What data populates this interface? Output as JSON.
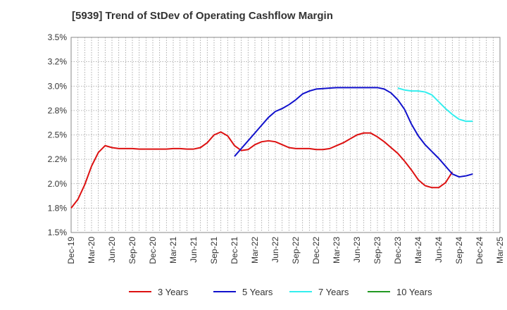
{
  "chart_data": {
    "type": "line",
    "title": "[5939]  Trend of StDev of Operating Cashflow Margin",
    "xlabel": "",
    "ylabel": "",
    "ylim": [
      1.5,
      3.5
    ],
    "yticks": [
      "1.5%",
      "1.8%",
      "2.0%",
      "2.2%",
      "2.5%",
      "2.8%",
      "3.0%",
      "3.2%",
      "3.5%"
    ],
    "xticks": [
      "Dec-19",
      "Mar-20",
      "Jun-20",
      "Sep-20",
      "Dec-20",
      "Mar-21",
      "Jun-21",
      "Sep-21",
      "Dec-21",
      "Mar-22",
      "Jun-22",
      "Sep-22",
      "Dec-22",
      "Mar-23",
      "Jun-23",
      "Sep-23",
      "Dec-23",
      "Mar-24",
      "Jun-24",
      "Sep-24",
      "Dec-24",
      "Mar-25"
    ],
    "grid": true,
    "legend_position": "bottom",
    "series": [
      {
        "name": "3 Years",
        "color": "#dd1111",
        "start_index": 0,
        "values": [
          1.75,
          1.84,
          1.99,
          2.18,
          2.32,
          2.39,
          2.37,
          2.36,
          2.36,
          2.36,
          2.355,
          2.355,
          2.355,
          2.355,
          2.355,
          2.36,
          2.36,
          2.355,
          2.355,
          2.37,
          2.42,
          2.5,
          2.53,
          2.49,
          2.39,
          2.34,
          2.35,
          2.4,
          2.43,
          2.44,
          2.43,
          2.4,
          2.37,
          2.36,
          2.36,
          2.36,
          2.35,
          2.35,
          2.36,
          2.39,
          2.42,
          2.46,
          2.5,
          2.52,
          2.52,
          2.48,
          2.43,
          2.37,
          2.31,
          2.23,
          2.14,
          2.04,
          1.98,
          1.96,
          1.96,
          2.01,
          2.12
        ]
      },
      {
        "name": "5 Years",
        "color": "#1111cc",
        "start_index": 24,
        "values": [
          2.28,
          2.36,
          2.44,
          2.52,
          2.6,
          2.68,
          2.74,
          2.77,
          2.81,
          2.86,
          2.92,
          2.95,
          2.97,
          2.975,
          2.98,
          2.985,
          2.985,
          2.985,
          2.985,
          2.985,
          2.985,
          2.985,
          2.97,
          2.93,
          2.86,
          2.76,
          2.61,
          2.49,
          2.4,
          2.33,
          2.26,
          2.18,
          2.1,
          2.07,
          2.08,
          2.1
        ]
      },
      {
        "name": "7 Years",
        "color": "#33eeee",
        "start_index": 48,
        "values": [
          2.98,
          2.96,
          2.95,
          2.95,
          2.94,
          2.91,
          2.84,
          2.77,
          2.71,
          2.66,
          2.64,
          2.64
        ]
      },
      {
        "name": "10 Years",
        "color": "#229922",
        "start_index": 0,
        "values": []
      }
    ]
  }
}
